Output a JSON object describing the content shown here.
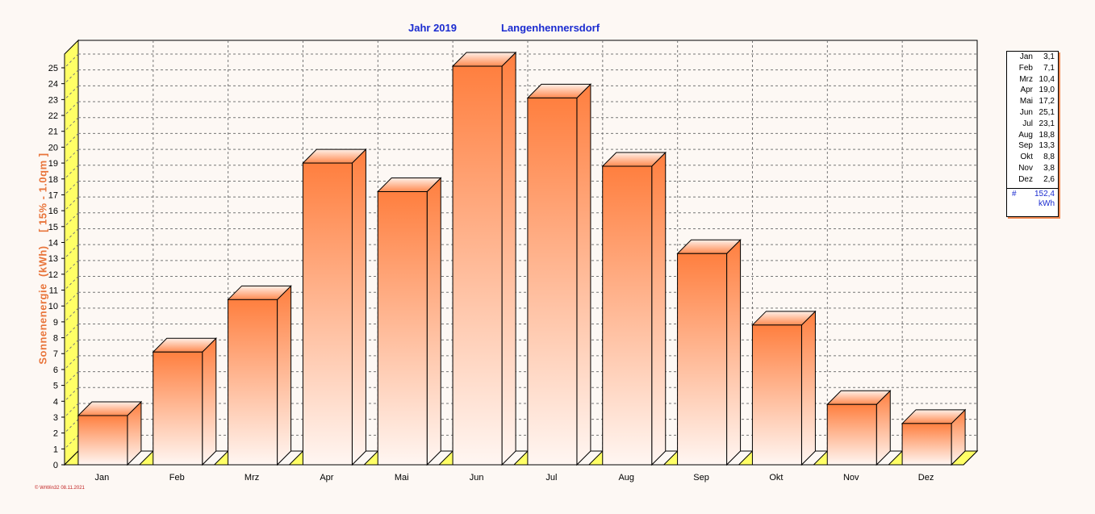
{
  "header": {
    "year_label": "Jahr  2019",
    "location": "Langenhennersdorf"
  },
  "legend": {
    "rows": [
      {
        "month": "Jan",
        "value": "3,1"
      },
      {
        "month": "Feb",
        "value": "7,1"
      },
      {
        "month": "Mrz",
        "value": "10,4"
      },
      {
        "month": "Apr",
        "value": "19,0"
      },
      {
        "month": "Mai",
        "value": "17,2"
      },
      {
        "month": "Jun",
        "value": "25,1"
      },
      {
        "month": "Jul",
        "value": "23,1"
      },
      {
        "month": "Aug",
        "value": "18,8"
      },
      {
        "month": "Sep",
        "value": "13,3"
      },
      {
        "month": "Okt",
        "value": "8,8"
      },
      {
        "month": "Nov",
        "value": "3,8"
      },
      {
        "month": "Dez",
        "value": "2,6"
      }
    ],
    "total_symbol": "#",
    "total_value": "152,4",
    "unit": "kWh"
  },
  "footer": "© WrWin32  08.11.2021",
  "colors": {
    "bar_top": "#ff7f3f",
    "bar_bottom": "#fff6f2",
    "yellow_face": "#ffff66",
    "title_blue": "#1a2bd0",
    "label_orange": "#e8743a"
  },
  "chart_data": {
    "type": "bar",
    "categories": [
      "Jan",
      "Feb",
      "Mrz",
      "Apr",
      "Mai",
      "Jun",
      "Jul",
      "Aug",
      "Sep",
      "Okt",
      "Nov",
      "Dez"
    ],
    "values": [
      3.1,
      7.1,
      10.4,
      19.0,
      17.2,
      25.1,
      23.1,
      18.8,
      13.3,
      8.8,
      3.8,
      2.6
    ],
    "title": "Jahr  2019",
    "subtitle": "Langenhennersdorf",
    "ylabel": "Sonnenenergie  (kWh)    [ 15% - 1.0qm ]",
    "xlabel": "",
    "ylim": [
      0,
      25
    ],
    "yticks": [
      0,
      1,
      2,
      3,
      4,
      5,
      6,
      7,
      8,
      9,
      10,
      11,
      12,
      13,
      14,
      15,
      16,
      17,
      18,
      19,
      20,
      21,
      22,
      23,
      24,
      25
    ],
    "grid": true,
    "legend_position": "right"
  }
}
